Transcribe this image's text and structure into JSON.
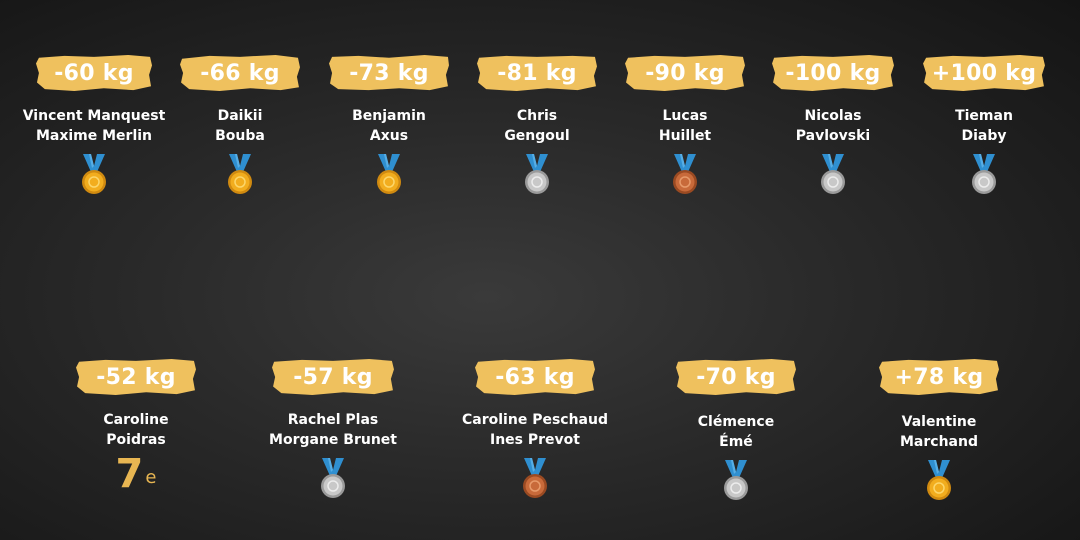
{
  "colors": {
    "label_bg": "#efc15e",
    "gold": "#f2ad1e",
    "silver": "#c8c8c8",
    "bronze": "#c86a3a",
    "ribbon": "#2f8fd0",
    "rank_text": "#e8b652"
  },
  "men": [
    {
      "weight": "-60 kg",
      "name1": "Vincent Manquest",
      "name2": "Maxime Merlin",
      "medal": "gold-medal-icon"
    },
    {
      "weight": "-66 kg",
      "name1": "Daikii",
      "name2": "Bouba",
      "medal": "gold-medal-icon"
    },
    {
      "weight": "-73 kg",
      "name1": "Benjamin",
      "name2": "Axus",
      "medal": "gold-medal-icon"
    },
    {
      "weight": "-81 kg",
      "name1": "Chris",
      "name2": "Gengoul",
      "medal": "silver-medal-icon"
    },
    {
      "weight": "-90 kg",
      "name1": "Lucas",
      "name2": "Huillet",
      "medal": "bronze-medal-icon"
    },
    {
      "weight": "-100 kg",
      "name1": "Nicolas",
      "name2": "Pavlovski",
      "medal": "silver-medal-icon"
    },
    {
      "weight": "+100 kg",
      "name1": "Tieman",
      "name2": "Diaby",
      "medal": "silver-medal-icon"
    }
  ],
  "women": [
    {
      "weight": "-52 kg",
      "name1": "Caroline",
      "name2": "Poidras",
      "rank": "7",
      "rank_suffix": "e"
    },
    {
      "weight": "-57 kg",
      "name1": "Rachel Plas",
      "name2": "Morgane Brunet",
      "medal": "silver-medal-icon"
    },
    {
      "weight": "-63 kg",
      "name1": "Caroline Peschaud",
      "name2": "Ines Prevot",
      "medal": "bronze-medal-icon"
    },
    {
      "weight": "-70 kg",
      "name1": "Clémence",
      "name2": "Émé",
      "medal": "silver-medal-icon"
    },
    {
      "weight": "+78 kg",
      "name1": "Valentine",
      "name2": "Marchand",
      "medal": "gold-medal-icon"
    }
  ]
}
